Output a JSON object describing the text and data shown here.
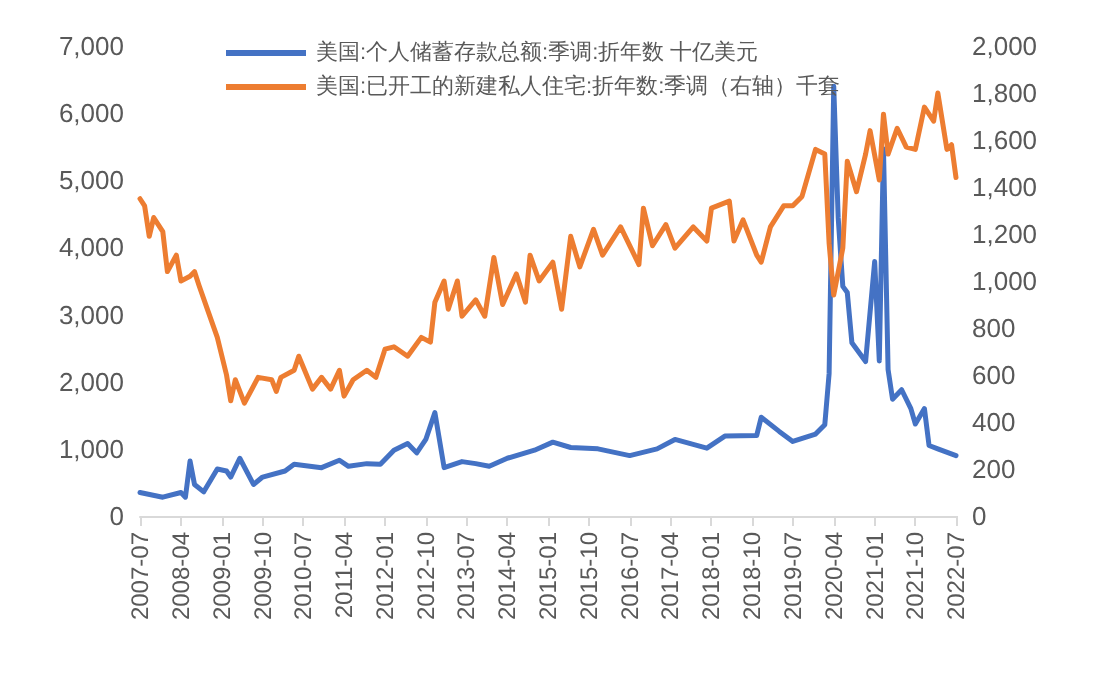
{
  "chart_data": {
    "type": "line",
    "marker": "none",
    "legend": "top",
    "line_style": "solid",
    "xlim": [
      "2007-07",
      "2022-07"
    ],
    "xticks": [
      "2007-07",
      "2008-04",
      "2009-01",
      "2009-10",
      "2010-07",
      "2011-04",
      "2012-01",
      "2012-10",
      "2013-07",
      "2014-04",
      "2015-01",
      "2015-10",
      "2016-07",
      "2017-04",
      "2018-01",
      "2018-10",
      "2019-07",
      "2020-04",
      "2021-01",
      "2021-10",
      "2022-07"
    ],
    "ylim": [
      0,
      7000
    ],
    "yticks": [
      0,
      {
        "value": 1000,
        "label": "1,000"
      },
      {
        "value": 2000,
        "label": "2,000"
      },
      {
        "value": 3000,
        "label": "3,000"
      },
      {
        "value": 4000,
        "label": "4,000"
      },
      {
        "value": 5000,
        "label": "5,000"
      },
      {
        "value": 6000,
        "label": "6,000"
      },
      {
        "value": 7000,
        "label": "7,000"
      }
    ],
    "y2lim": [
      0,
      2000
    ],
    "y2ticks": [
      0,
      200,
      400,
      600,
      800,
      {
        "value": 1000,
        "label": "1,000"
      },
      {
        "value": 1200,
        "label": "1,200"
      },
      {
        "value": 1400,
        "label": "1,400"
      },
      {
        "value": 1600,
        "label": "1,600"
      },
      {
        "value": 1800,
        "label": "1,800"
      },
      {
        "value": 2000,
        "label": "2,000"
      }
    ],
    "series": [
      {
        "name": "美国:个人储蓄存款总额:季调:折年数 十亿美元",
        "color": "#4472c4",
        "x": [
          "2007-07",
          "2007-12",
          "2008-04",
          "2008-05",
          "2008-06",
          "2008-07",
          "2008-09",
          "2008-12",
          "2009-02",
          "2009-03",
          "2009-05",
          "2009-08",
          "2009-10",
          "2010-03",
          "2010-05",
          "2010-11",
          "2011-03",
          "2011-05",
          "2011-09",
          "2011-12",
          "2012-03",
          "2012-06",
          "2012-08",
          "2012-10",
          "2012-12",
          "2013-02",
          "2013-06",
          "2013-09",
          "2013-12",
          "2014-04",
          "2014-10",
          "2015-02",
          "2015-06",
          "2015-12",
          "2016-07",
          "2017-01",
          "2017-05",
          "2017-12",
          "2018-04",
          "2018-11",
          "2018-12",
          "2019-04",
          "2019-07",
          "2019-12",
          "2020-02",
          "2020-03",
          "2020-04",
          "2020-05",
          "2020-06",
          "2020-07",
          "2020-08",
          "2020-11",
          "2021-01",
          "2021-02",
          "2021-03",
          "2021-04",
          "2021-05",
          "2021-07",
          "2021-09",
          "2021-10",
          "2021-12",
          "2022-01",
          "2022-03",
          "2022-07"
        ],
        "values": [
          350,
          280,
          350,
          280,
          820,
          470,
          360,
          700,
          670,
          580,
          860,
          470,
          580,
          670,
          770,
          720,
          830,
          740,
          780,
          770,
          980,
          1080,
          940,
          1140,
          1540,
          720,
          810,
          780,
          740,
          860,
          980,
          1100,
          1020,
          1000,
          900,
          1000,
          1140,
          1010,
          1190,
          1200,
          1470,
          1260,
          1110,
          1220,
          1360,
          2120,
          6400,
          4440,
          3420,
          3330,
          2580,
          2300,
          3790,
          2310,
          5470,
          2180,
          1740,
          1880,
          1600,
          1370,
          1600,
          1050,
          1000,
          900
        ]
      },
      {
        "name": "美国:已开工的新建私人住宅:折年数:季调（右轴）千套",
        "color": "#ed7d31",
        "axis": "y2",
        "x": [
          "2007-07",
          "2007-08",
          "2007-09",
          "2007-10",
          "2007-12",
          "2008-01",
          "2008-03",
          "2008-04",
          "2008-06",
          "2008-07",
          "2008-08",
          "2008-10",
          "2008-12",
          "2009-02",
          "2009-03",
          "2009-04",
          "2009-06",
          "2009-09",
          "2009-12",
          "2010-01",
          "2010-02",
          "2010-05",
          "2010-06",
          "2010-09",
          "2010-11",
          "2011-01",
          "2011-03",
          "2011-04",
          "2011-06",
          "2011-09",
          "2011-11",
          "2012-01",
          "2012-03",
          "2012-06",
          "2012-09",
          "2012-11",
          "2012-12",
          "2013-02",
          "2013-03",
          "2013-05",
          "2013-06",
          "2013-09",
          "2013-11",
          "2014-01",
          "2014-03",
          "2014-06",
          "2014-08",
          "2014-09",
          "2014-11",
          "2015-02",
          "2015-04",
          "2015-06",
          "2015-08",
          "2015-11",
          "2016-01",
          "2016-05",
          "2016-09",
          "2016-10",
          "2016-12",
          "2017-03",
          "2017-05",
          "2017-09",
          "2017-12",
          "2018-01",
          "2018-05",
          "2018-06",
          "2018-08",
          "2018-11",
          "2018-12",
          "2019-02",
          "2019-05",
          "2019-07",
          "2019-09",
          "2019-12",
          "2020-02",
          "2020-03",
          "2020-04",
          "2020-06",
          "2020-07",
          "2020-09",
          "2020-11",
          "2020-12",
          "2021-02",
          "2021-03",
          "2021-04",
          "2021-06",
          "2021-08",
          "2021-10",
          "2021-12",
          "2022-02",
          "2022-03",
          "2022-05",
          "2022-06",
          "2022-07"
        ],
        "values": [
          1350,
          1320,
          1190,
          1270,
          1210,
          1040,
          1110,
          1000,
          1020,
          1040,
          980,
          870,
          760,
          600,
          490,
          580,
          480,
          590,
          580,
          530,
          590,
          620,
          680,
          540,
          590,
          540,
          620,
          510,
          580,
          620,
          590,
          710,
          720,
          680,
          760,
          740,
          910,
          1000,
          880,
          1000,
          850,
          920,
          850,
          1100,
          900,
          1030,
          910,
          1110,
          1000,
          1080,
          880,
          1190,
          1060,
          1220,
          1110,
          1230,
          1070,
          1310,
          1150,
          1240,
          1140,
          1230,
          1170,
          1310,
          1340,
          1170,
          1260,
          1110,
          1080,
          1230,
          1320,
          1320,
          1360,
          1560,
          1540,
          1160,
          940,
          1140,
          1510,
          1380,
          1540,
          1640,
          1430,
          1710,
          1540,
          1650,
          1570,
          1560,
          1740,
          1680,
          1800,
          1560,
          1580,
          1440
        ]
      }
    ]
  }
}
